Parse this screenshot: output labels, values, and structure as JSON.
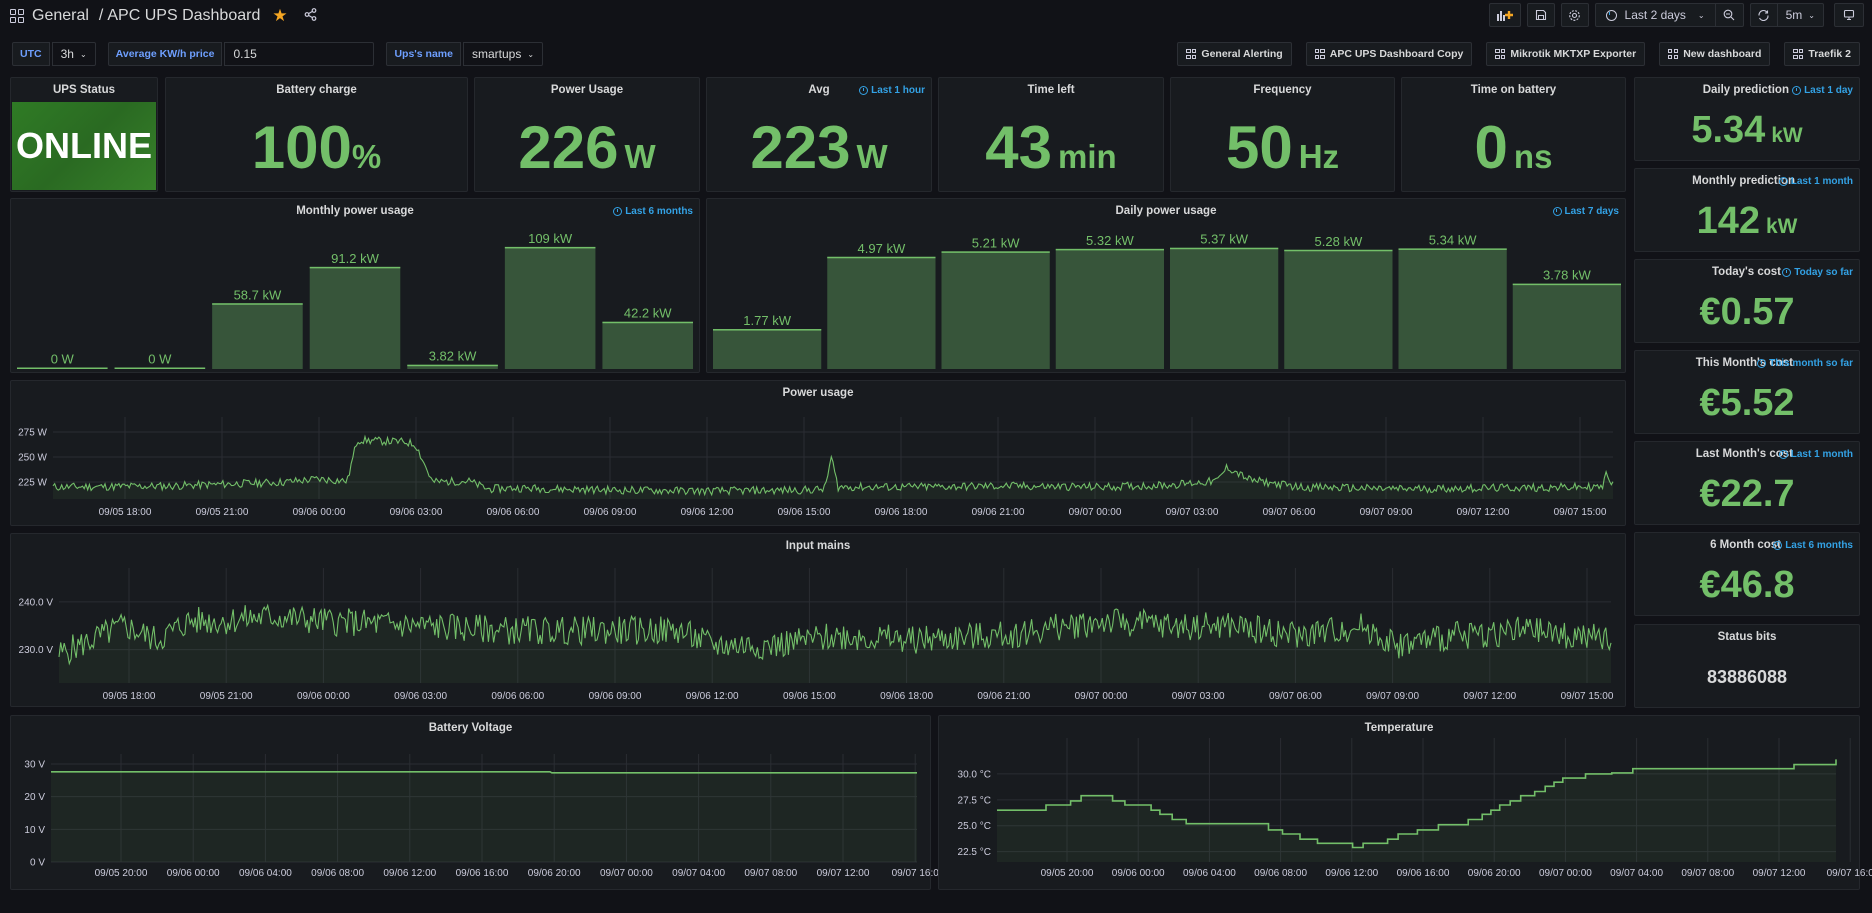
{
  "header": {
    "folder": "General",
    "separator": "/",
    "title": "APC UPS Dashboard",
    "time_range": "Last 2 days",
    "refresh": "5m"
  },
  "variables": [
    {
      "label": "UTC",
      "value": "3h"
    },
    {
      "label": "Average KW/h price",
      "value": "0.15"
    },
    {
      "label": "Ups's name",
      "value": "smartups"
    }
  ],
  "links": [
    "General Alerting",
    "APC UPS Dashboard Copy",
    "Mikrotik MKTXP Exporter",
    "New dashboard",
    "Traefik 2"
  ],
  "stats": {
    "ups_status": {
      "title": "UPS Status",
      "value": "ONLINE"
    },
    "battery_charge": {
      "title": "Battery charge",
      "value": "100",
      "unit": "%"
    },
    "power_usage": {
      "title": "Power Usage",
      "value": "226",
      "unit": "W"
    },
    "avg": {
      "title": "Avg",
      "value": "223",
      "unit": "W",
      "range": "Last 1 hour"
    },
    "time_left": {
      "title": "Time left",
      "value": "43",
      "unit": "min"
    },
    "frequency": {
      "title": "Frequency",
      "value": "50",
      "unit": "Hz"
    },
    "time_on_battery": {
      "title": "Time on battery",
      "value": "0",
      "unit": "ns"
    },
    "daily_prediction": {
      "title": "Daily prediction",
      "value": "5.34",
      "unit": "kW",
      "range": "Last 1 day"
    },
    "monthly_prediction": {
      "title": "Monthly prediction",
      "value": "142",
      "unit": "kW",
      "range": "Last 1 month"
    },
    "todays_cost": {
      "title": "Today's cost",
      "value": "€0.57",
      "range": "Today so far"
    },
    "this_month_cost": {
      "title": "This Month's cost",
      "value": "€5.52",
      "range": "This month so far"
    },
    "last_month_cost": {
      "title": "Last Month's cost",
      "value": "€22.7",
      "range": "Last 1 month"
    },
    "six_month_cost": {
      "title": "6 Month cost",
      "value": "€46.8",
      "range": "Last 6 months"
    },
    "status_bits": {
      "title": "Status bits",
      "value": "83886088"
    }
  },
  "colors": {
    "green": "#73bf69",
    "bar_fill": "#37553a",
    "link_blue": "#33a2e5"
  },
  "chart_data": [
    {
      "id": "monthly",
      "type": "bar",
      "title": "Monthly power usage",
      "range": "Last 6 months",
      "values": [
        0,
        0,
        58.7,
        91.2,
        3.82,
        109,
        42.2
      ],
      "labels": [
        "0 W",
        "0 W",
        "58.7 kW",
        "91.2 kW",
        "3.82 kW",
        "109 kW",
        "42.2 kW"
      ],
      "ylim": [
        0,
        125
      ]
    },
    {
      "id": "daily",
      "type": "bar",
      "title": "Daily power usage",
      "range": "Last 7 days",
      "values": [
        1.77,
        4.97,
        5.21,
        5.32,
        5.37,
        5.28,
        5.34,
        3.78
      ],
      "labels": [
        "1.77 kW",
        "4.97 kW",
        "5.21 kW",
        "5.32 kW",
        "5.37 kW",
        "5.28 kW",
        "5.34 kW",
        "3.78 kW"
      ],
      "ylim": [
        0,
        6.2
      ]
    },
    {
      "id": "power",
      "type": "line",
      "title": "Power usage",
      "yticks": [
        "225 W",
        "250 W",
        "275 W"
      ],
      "ytick_values": [
        225,
        250,
        275
      ],
      "ylim": [
        208,
        280
      ],
      "xticks": [
        "09/05 18:00",
        "09/05 21:00",
        "09/06 00:00",
        "09/06 03:00",
        "09/06 06:00",
        "09/06 09:00",
        "09/06 12:00",
        "09/06 15:00",
        "09/06 18:00",
        "09/06 21:00",
        "09/07 00:00",
        "09/07 03:00",
        "09/07 06:00",
        "09/07 09:00",
        "09/07 12:00",
        "09/07 15:00"
      ],
      "x_hours_start": 15.9,
      "x_hours_end": 63.6,
      "keypoints": [
        [
          15.9,
          220
        ],
        [
          19.5,
          221
        ],
        [
          23.0,
          225
        ],
        [
          24.0,
          228
        ],
        [
          24.9,
          226
        ],
        [
          25.2,
          267
        ],
        [
          26.7,
          265
        ],
        [
          27.0,
          262
        ],
        [
          27.5,
          225
        ],
        [
          28.6,
          226
        ],
        [
          29.2,
          218
        ],
        [
          30.0,
          219
        ],
        [
          33.0,
          217
        ],
        [
          36.0,
          216
        ],
        [
          39.0,
          217
        ],
        [
          39.5,
          218
        ],
        [
          39.7,
          250
        ],
        [
          39.9,
          220
        ],
        [
          42.0,
          220
        ],
        [
          45.0,
          221
        ],
        [
          48.0,
          220
        ],
        [
          50.0,
          222
        ],
        [
          51.5,
          226
        ],
        [
          51.8,
          240
        ],
        [
          52.5,
          227
        ],
        [
          54.0,
          220
        ],
        [
          57.0,
          218
        ],
        [
          60.0,
          219
        ],
        [
          63.3,
          220
        ],
        [
          63.4,
          235
        ],
        [
          63.6,
          222
        ]
      ],
      "noise": 4
    },
    {
      "id": "mains",
      "type": "line",
      "title": "Input mains",
      "yticks": [
        "230.0 V",
        "240.0 V"
      ],
      "ytick_values": [
        230,
        240
      ],
      "ylim": [
        223,
        245
      ],
      "xticks": [
        "09/05 18:00",
        "09/05 21:00",
        "09/06 00:00",
        "09/06 03:00",
        "09/06 06:00",
        "09/06 09:00",
        "09/06 12:00",
        "09/06 15:00",
        "09/06 18:00",
        "09/06 21:00",
        "09/07 00:00",
        "09/07 03:00",
        "09/07 06:00",
        "09/07 09:00",
        "09/07 12:00",
        "09/07 15:00"
      ],
      "x_hours_start": 16.0,
      "x_hours_end": 63.6,
      "keypoints": [
        [
          16.0,
          229
        ],
        [
          17.0,
          232
        ],
        [
          18.0,
          235
        ],
        [
          19.0,
          232
        ],
        [
          20.0,
          236
        ],
        [
          21.0,
          236
        ],
        [
          22.5,
          237
        ],
        [
          24.0,
          236
        ],
        [
          27.0,
          235
        ],
        [
          30.0,
          234
        ],
        [
          33.0,
          234
        ],
        [
          35.0,
          234
        ],
        [
          36.0,
          231
        ],
        [
          38.0,
          231
        ],
        [
          40.0,
          233
        ],
        [
          42.0,
          232
        ],
        [
          45.0,
          233
        ],
        [
          48.0,
          236
        ],
        [
          50.0,
          235
        ],
        [
          52.0,
          235
        ],
        [
          54.0,
          233
        ],
        [
          56.0,
          235
        ],
        [
          57.0,
          231
        ],
        [
          59.0,
          233
        ],
        [
          61.0,
          234
        ],
        [
          63.6,
          232
        ]
      ],
      "noise": 3
    },
    {
      "id": "battery",
      "type": "line",
      "title": "Battery Voltage",
      "yticks": [
        "0 V",
        "10 V",
        "20 V",
        "30 V"
      ],
      "ytick_values": [
        0,
        10,
        20,
        30
      ],
      "ylim": [
        0,
        30
      ],
      "xticks": [
        "09/05 20:00",
        "09/06 00:00",
        "09/06 04:00",
        "09/06 08:00",
        "09/06 12:00",
        "09/06 16:00",
        "09/06 20:00",
        "09/07 00:00",
        "09/07 04:00",
        "09/07 08:00",
        "09/07 12:00",
        "09/07 16:0"
      ],
      "x_hours_start": 16.1,
      "x_hours_end": 64.0,
      "keypoints": [
        [
          16.1,
          27.6
        ],
        [
          43.7,
          27.6
        ],
        [
          43.8,
          27.3
        ],
        [
          64.0,
          27.3
        ]
      ],
      "noise": 0
    },
    {
      "id": "temperature",
      "type": "line",
      "title": "Temperature",
      "yticks": [
        "22.5 °C",
        "25.0 °C",
        "27.5 °C",
        "30.0 °C"
      ],
      "ytick_values": [
        22.5,
        25,
        27.5,
        30
      ],
      "ylim": [
        21.5,
        32.5
      ],
      "xticks": [
        "09/05 20:00",
        "09/06 00:00",
        "09/06 04:00",
        "09/06 08:00",
        "09/06 12:00",
        "09/06 16:00",
        "09/06 20:00",
        "09/07 00:00",
        "09/07 04:00",
        "09/07 08:00",
        "09/07 12:00",
        "09/07 16:0"
      ],
      "x_hours_start": 16.1,
      "x_hours_end": 64.0,
      "step": true,
      "keypoints": [
        [
          16.1,
          26.5
        ],
        [
          18.9,
          27.0
        ],
        [
          20.3,
          27.4
        ],
        [
          20.9,
          27.9
        ],
        [
          21.0,
          27.9
        ],
        [
          22.7,
          27.4
        ],
        [
          23.4,
          27.0
        ],
        [
          24.9,
          26.5
        ],
        [
          25.4,
          26.1
        ],
        [
          26.1,
          25.6
        ],
        [
          26.9,
          25.2
        ],
        [
          29.9,
          25.2
        ],
        [
          31.6,
          24.6
        ],
        [
          32.4,
          24.2
        ],
        [
          33.4,
          23.7
        ],
        [
          34.4,
          23.3
        ],
        [
          36.4,
          22.9
        ],
        [
          37.0,
          23.3
        ],
        [
          38.4,
          23.7
        ],
        [
          39.0,
          24.2
        ],
        [
          40.1,
          24.6
        ],
        [
          41.3,
          25.1
        ],
        [
          43.0,
          25.6
        ],
        [
          43.8,
          26.1
        ],
        [
          44.3,
          26.5
        ],
        [
          44.8,
          27.0
        ],
        [
          45.4,
          27.4
        ],
        [
          46.0,
          27.9
        ],
        [
          46.8,
          28.3
        ],
        [
          47.4,
          28.8
        ],
        [
          47.9,
          29.2
        ],
        [
          48.4,
          29.6
        ],
        [
          49.7,
          30.0
        ],
        [
          51.2,
          30.1
        ],
        [
          52.4,
          30.5
        ],
        [
          61.2,
          30.5
        ],
        [
          61.6,
          30.9
        ],
        [
          64.0,
          30.9
        ],
        [
          64.0,
          31.4
        ]
      ],
      "noise": 0
    }
  ]
}
